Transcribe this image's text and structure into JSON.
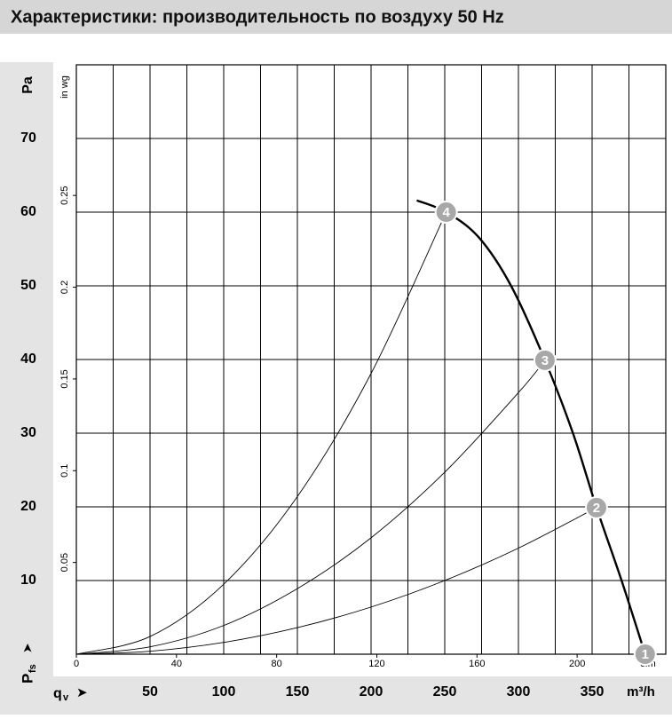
{
  "chart_data": {
    "type": "line",
    "title": "Характеристики: производительность по воздуху 50 Hz",
    "y_label": "Pa",
    "y_label_main": "P",
    "y_label_sub": "fs",
    "x_label_main": "q",
    "x_label_sub": "v",
    "x_unit": "m³/h",
    "x2_unit": "cfm",
    "y2_unit": "in wg",
    "xlim": [
      0,
      400
    ],
    "xticks": [
      50,
      100,
      150,
      200,
      250,
      300,
      350
    ],
    "xgrid": [
      25,
      50,
      75,
      100,
      125,
      150,
      175,
      200,
      225,
      250,
      275,
      300,
      325,
      350,
      375
    ],
    "ylim": [
      0,
      80
    ],
    "yticks": [
      10,
      20,
      30,
      40,
      50,
      60,
      70
    ],
    "x2lim": [
      0,
      235.4
    ],
    "x2ticks": [
      0,
      40,
      80,
      120,
      160,
      200
    ],
    "y2lim": [
      0,
      0.3212
    ],
    "y2ticks": [
      0.05,
      0.1,
      0.15,
      0.2,
      0.25
    ],
    "grid": true,
    "series": [
      {
        "name": "fan",
        "color": "#000000",
        "width": 2.4,
        "x": [
          231,
          251,
          273,
          295,
          318,
          337,
          353,
          370,
          386
        ],
        "values": [
          61.6,
          60,
          56.6,
          50,
          39.9,
          30,
          19.9,
          10,
          0
        ]
      },
      {
        "name": "4",
        "color": "#000000",
        "width": 0.9,
        "x": [
          0,
          50,
          100,
          150,
          200,
          251
        ],
        "values": [
          0,
          2.4,
          9.5,
          21.4,
          38.1,
          60
        ]
      },
      {
        "name": "3",
        "color": "#000000",
        "width": 0.9,
        "x": [
          0,
          50,
          100,
          150,
          200,
          250,
          300,
          318
        ],
        "values": [
          0,
          1.0,
          3.9,
          8.9,
          15.8,
          24.7,
          35.5,
          39.9
        ]
      },
      {
        "name": "2",
        "color": "#000000",
        "width": 0.9,
        "x": [
          0,
          50,
          100,
          150,
          200,
          250,
          300,
          353
        ],
        "values": [
          0,
          0.4,
          1.6,
          3.6,
          6.4,
          10.0,
          14.4,
          19.9
        ]
      }
    ],
    "operating_points": [
      {
        "label": "1",
        "x": 386,
        "y": 0
      },
      {
        "label": "2",
        "x": 353,
        "y": 19.9
      },
      {
        "label": "3",
        "x": 318,
        "y": 39.9
      },
      {
        "label": "4",
        "x": 251,
        "y": 60
      }
    ]
  }
}
